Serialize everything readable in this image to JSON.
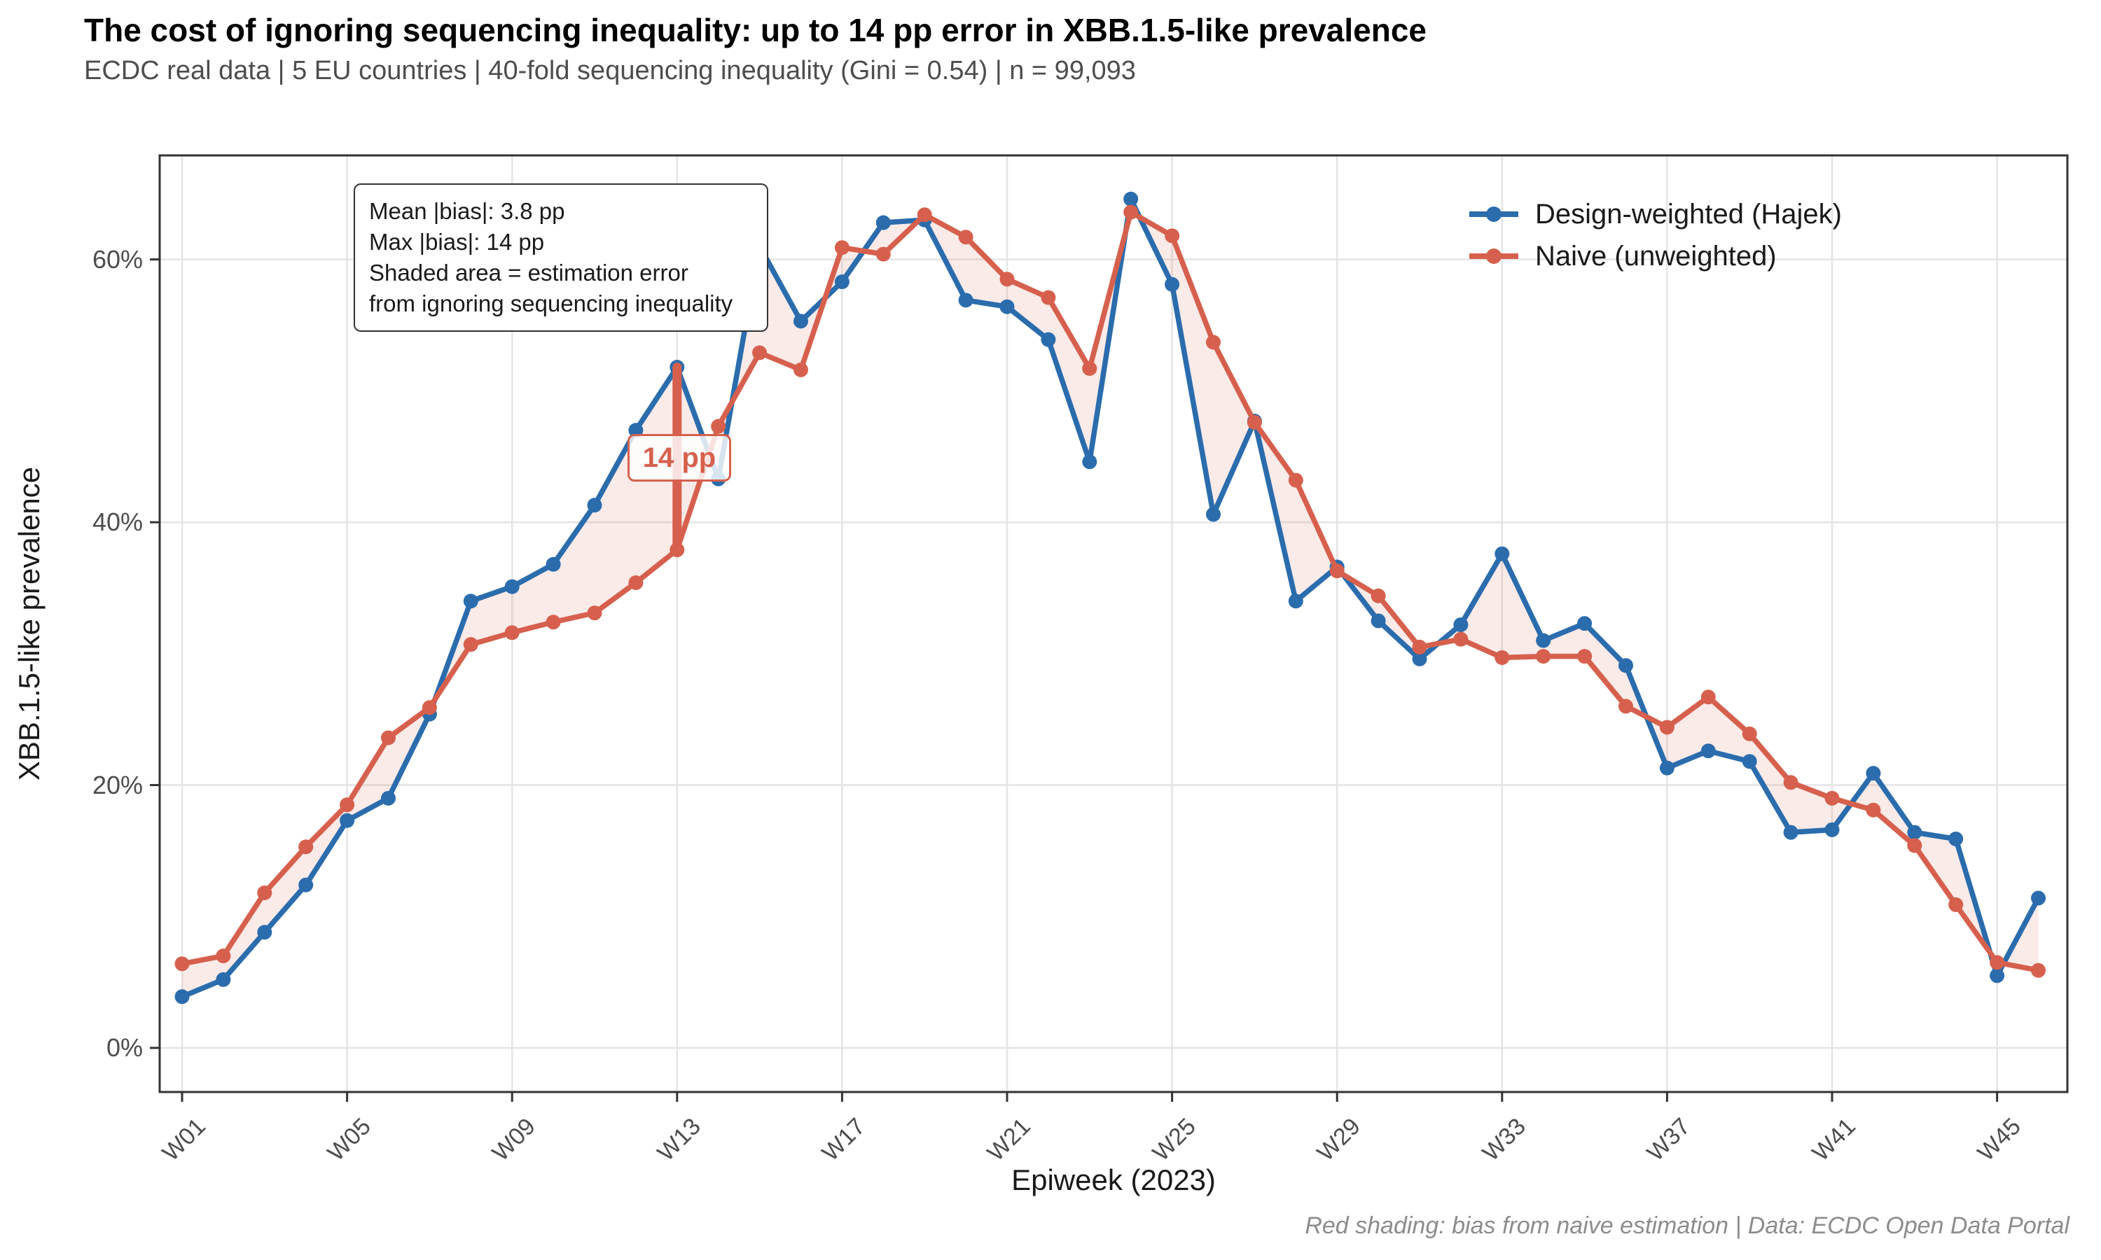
{
  "title": "The cost of ignoring sequencing inequality: up to 14 pp error in XBB.1.5-like prevalence",
  "subtitle": "ECDC real data | 5 EU countries | 40-fold sequencing inequality (Gini = 0.54) | n = 99,093",
  "caption": "Red shading: bias from naive estimation | Data: ECDC Open Data Portal",
  "annotation_box": {
    "lines": [
      "Mean |bias|: 3.8 pp",
      "Max |bias|: 14 pp",
      "Shaded area = estimation error",
      "from ignoring sequencing inequality"
    ]
  },
  "bias_callout": {
    "label": "14 pp",
    "week": "W13"
  },
  "legend": [
    {
      "label": "Design-weighted (Hajek)",
      "color": "#2b6cad"
    },
    {
      "label": "Naive (unweighted)",
      "color": "#d6604d"
    }
  ],
  "colors": {
    "hajek": "#2b6cad",
    "naive": "#d6604d",
    "ribbon": "rgba(214,96,77,0.13)",
    "grid": "#e4e4e4",
    "panel_border": "#333333",
    "axis_text": "#4d4d4d"
  },
  "chart_data": {
    "type": "line",
    "title": "The cost of ignoring sequencing inequality: up to 14 pp error in XBB.1.5-like prevalence",
    "xlabel": "Epiweek (2023)",
    "ylabel": "XBB.1.5-like prevalence",
    "ylim": [
      0,
      67
    ],
    "yticks": [
      0,
      20,
      40,
      60
    ],
    "ytick_labels": [
      "0%",
      "20%",
      "40%",
      "60%"
    ],
    "xtick_labels": [
      "W01",
      "W05",
      "W09",
      "W13",
      "W17",
      "W21",
      "W25",
      "W29",
      "W33",
      "W37",
      "W41",
      "W45"
    ],
    "xtick_weeks": [
      1,
      5,
      9,
      13,
      17,
      21,
      25,
      29,
      33,
      37,
      41,
      45
    ],
    "grid": "major-only",
    "legend_position": "top-right-inside",
    "weeks": [
      "W01",
      "W02",
      "W03",
      "W04",
      "W05",
      "W06",
      "W07",
      "W08",
      "W09",
      "W10",
      "W11",
      "W12",
      "W13",
      "W14",
      "W15",
      "W16",
      "W17",
      "W18",
      "W19",
      "W20",
      "W21",
      "W22",
      "W23",
      "W24",
      "W25",
      "W26",
      "W27",
      "W28",
      "W29",
      "W30",
      "W31",
      "W32",
      "W33",
      "W34",
      "W35",
      "W36",
      "W37",
      "W38",
      "W39",
      "W40",
      "W41",
      "W42",
      "W43",
      "W44",
      "W45",
      "W46"
    ],
    "series": [
      {
        "name": "Design-weighted (Hajek)",
        "color": "#2b6cad",
        "values": [
          3.9,
          5.2,
          8.8,
          12.4,
          17.3,
          19.0,
          25.4,
          34.0,
          35.1,
          36.8,
          41.3,
          47.0,
          51.8,
          43.3,
          61.0,
          55.3,
          58.3,
          62.8,
          63.0,
          56.9,
          56.4,
          53.9,
          44.6,
          64.6,
          58.1,
          40.6,
          47.7,
          34.0,
          36.6,
          32.5,
          29.6,
          32.2,
          37.6,
          31.0,
          32.3,
          29.1,
          21.3,
          22.6,
          21.8,
          16.4,
          16.6,
          20.9,
          16.4,
          15.9,
          5.5,
          11.4
        ]
      },
      {
        "name": "Naive (unweighted)",
        "color": "#d6604d",
        "values": [
          6.4,
          7.0,
          11.8,
          15.3,
          18.5,
          23.6,
          25.9,
          30.7,
          31.6,
          32.4,
          33.1,
          35.4,
          37.9,
          47.3,
          52.9,
          51.6,
          60.9,
          60.4,
          63.4,
          61.7,
          58.5,
          57.1,
          51.7,
          63.6,
          61.8,
          53.7,
          47.6,
          43.2,
          36.3,
          34.4,
          30.5,
          31.1,
          29.7,
          29.8,
          29.8,
          26.0,
          24.4,
          26.7,
          23.9,
          20.2,
          19.0,
          18.1,
          15.4,
          10.9,
          6.5,
          5.9
        ]
      }
    ],
    "bias_marker": {
      "week": "W13",
      "hajek": 51.8,
      "naive": 37.9,
      "bias_pp": 14
    }
  }
}
